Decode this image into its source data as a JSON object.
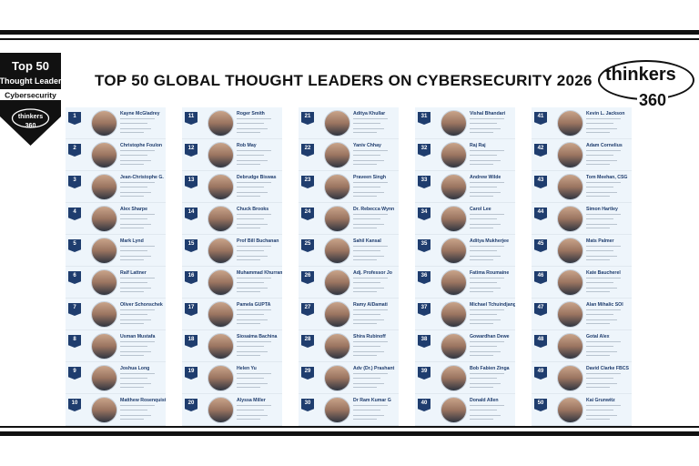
{
  "badge": {
    "line1": "Top 50",
    "line2": "Thought Leader",
    "line3": "Cybersecurity",
    "brand_top": "thinkers",
    "brand_bottom": "360"
  },
  "title": "TOP 50 GLOBAL THOUGHT LEADERS ON CYBERSECURITY 2026",
  "logo": {
    "word": "thinkers",
    "number": "360"
  },
  "colors": {
    "rank_badge": "#1f3d6e",
    "name_text": "#1f3d6e",
    "card_bg": "#eef5fb",
    "rules": "#111111"
  },
  "columns": [
    {
      "entries": [
        {
          "rank": "1",
          "name": "Kayne McGladrey"
        },
        {
          "rank": "2",
          "name": "Christophe Foulon"
        },
        {
          "rank": "3",
          "name": "Jean-Christophe G."
        },
        {
          "rank": "4",
          "name": "Alex Sharpe"
        },
        {
          "rank": "5",
          "name": "Mark Lynd"
        },
        {
          "rank": "6",
          "name": "Ralf Lattner"
        },
        {
          "rank": "7",
          "name": "Oliver Schonschek"
        },
        {
          "rank": "8",
          "name": "Usman Mustafa"
        },
        {
          "rank": "9",
          "name": "Joshua Long"
        },
        {
          "rank": "10",
          "name": "Matthew Rosenquist"
        }
      ]
    },
    {
      "entries": [
        {
          "rank": "11",
          "name": "Roger Smith"
        },
        {
          "rank": "12",
          "name": "Rob May"
        },
        {
          "rank": "13",
          "name": "Debrudge Biswas"
        },
        {
          "rank": "14",
          "name": "Chuck Brooks"
        },
        {
          "rank": "15",
          "name": "Prof Bill Buchanan"
        },
        {
          "rank": "16",
          "name": "Muhammad Khurram"
        },
        {
          "rank": "17",
          "name": "Pamela GUPTA"
        },
        {
          "rank": "18",
          "name": "Siosaima Bachina"
        },
        {
          "rank": "19",
          "name": "Helen Yu"
        },
        {
          "rank": "20",
          "name": "Alyssa Miller"
        }
      ]
    },
    {
      "entries": [
        {
          "rank": "21",
          "name": "Aditya Khullar"
        },
        {
          "rank": "22",
          "name": "Yaniv Chhay"
        },
        {
          "rank": "23",
          "name": "Praveen Singh"
        },
        {
          "rank": "24",
          "name": "Dr. Rebecca Wynn"
        },
        {
          "rank": "25",
          "name": "Sahil Kansal"
        },
        {
          "rank": "26",
          "name": "Adj. Professor Jo"
        },
        {
          "rank": "27",
          "name": "Ramy AlDamati"
        },
        {
          "rank": "28",
          "name": "Shira Rubinoff"
        },
        {
          "rank": "29",
          "name": "Adv (Dr.) Prashant"
        },
        {
          "rank": "30",
          "name": "Dr Ram Kumar G"
        }
      ]
    },
    {
      "entries": [
        {
          "rank": "31",
          "name": "Vishal Bhandari"
        },
        {
          "rank": "32",
          "name": "Raj Raj"
        },
        {
          "rank": "33",
          "name": "Andrew Wilde"
        },
        {
          "rank": "34",
          "name": "Carol Lee"
        },
        {
          "rank": "35",
          "name": "Aditya Mukherjee"
        },
        {
          "rank": "36",
          "name": "Fatima Roumaine"
        },
        {
          "rank": "37",
          "name": "Michael Tchuindjang"
        },
        {
          "rank": "38",
          "name": "Gowardhan Dewe"
        },
        {
          "rank": "39",
          "name": "Bob Fabien Zinga"
        },
        {
          "rank": "40",
          "name": "Donald Allen"
        }
      ]
    },
    {
      "entries": [
        {
          "rank": "41",
          "name": "Kevin L. Jackson"
        },
        {
          "rank": "42",
          "name": "Adam Cornelius"
        },
        {
          "rank": "43",
          "name": "Tom Meehan, CSG"
        },
        {
          "rank": "44",
          "name": "Simon Hartley"
        },
        {
          "rank": "45",
          "name": "Mats Palmer"
        },
        {
          "rank": "46",
          "name": "Kate Baucherel"
        },
        {
          "rank": "47",
          "name": "Alan Mihalic SOI"
        },
        {
          "rank": "48",
          "name": "Gotal Alex"
        },
        {
          "rank": "49",
          "name": "David Clarke FBCS"
        },
        {
          "rank": "50",
          "name": "Kai Grunwitz"
        }
      ]
    }
  ]
}
